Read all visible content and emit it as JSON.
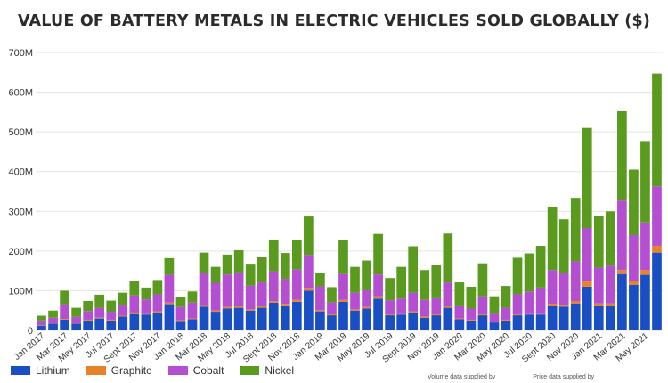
{
  "chart_data": {
    "type": "bar",
    "stacked": true,
    "title": "VALUE OF BATTERY METALS IN ELECTRIC VEHICLES SOLD GLOBALLY ($)",
    "xlabel": "",
    "ylabel": "",
    "ylim": [
      0,
      700
    ],
    "y_ticks": [
      0,
      100,
      200,
      300,
      400,
      500,
      600,
      700
    ],
    "y_tick_labels": [
      "0",
      "100M",
      "200M",
      "300M",
      "400M",
      "500M",
      "600M",
      "700M"
    ],
    "grid": true,
    "legend_position": "bottom-left",
    "categories": [
      "Jan 2017",
      "Feb 2017",
      "Mar 2017",
      "Apr 2017",
      "May 2017",
      "Jun 2017",
      "Jul 2017",
      "Aug 2017",
      "Sept 2017",
      "Oct 2017",
      "Nov 2017",
      "Dec 2017",
      "Jan 2018",
      "Feb 2018",
      "Mar 2018",
      "Apr 2018",
      "May 2018",
      "Jun 2018",
      "Jul 2018",
      "Aug 2018",
      "Sept 2018",
      "Oct 2018",
      "Nov 2018",
      "Dec 2018",
      "Jan 2019",
      "Feb 2019",
      "Mar 2019",
      "Apr 2019",
      "May 2019",
      "Jun 2019",
      "Jul 2019",
      "Aug 2019",
      "Sept 2019",
      "Oct 2019",
      "Nov 2019",
      "Dec 2019",
      "Jan 2020",
      "Feb 2020",
      "Mar 2020",
      "Apr 2020",
      "May 2020",
      "Jun 2020",
      "Jul 2020",
      "Aug 2020",
      "Sept 2020",
      "Oct 2020",
      "Nov 2020",
      "Dec 2020",
      "Jan 2021",
      "Feb 2021",
      "Mar 2021",
      "Apr 2021",
      "May 2021",
      "Jun 2021"
    ],
    "x_tick_labels": [
      "Jan 2017",
      "Mar 2017",
      "May 2017",
      "Jul 2017",
      "Sept 2017",
      "Nov 2017",
      "Jan 2018",
      "Mar 2018",
      "May 2018",
      "Jul 2018",
      "Sept 2018",
      "Nov 2018",
      "Jan 2019",
      "Mar 2019",
      "May 2019",
      "Jul 2019",
      "Sept 2019",
      "Nov 2019",
      "Jan 2020",
      "Mar 2020",
      "May 2020",
      "Jul 2020",
      "Sept 2020",
      "Nov 2020",
      "Jan 2021",
      "Mar 2021",
      "May 2021"
    ],
    "series": [
      {
        "name": "Lithium",
        "color": "#1a4fc4",
        "values": [
          12,
          17,
          27,
          17,
          25,
          30,
          25,
          35,
          42,
          40,
          45,
          66,
          24,
          28,
          60,
          47,
          55,
          57,
          50,
          57,
          70,
          63,
          72,
          100,
          48,
          38,
          72,
          50,
          55,
          80,
          38,
          40,
          45,
          32,
          38,
          57,
          28,
          25,
          38,
          20,
          25,
          38,
          40,
          40,
          62,
          60,
          68,
          110,
          62,
          62,
          142,
          115,
          140,
          196
        ]
      },
      {
        "name": "Graphite",
        "color": "#e8822a",
        "values": [
          1,
          1,
          2,
          1,
          2,
          2,
          2,
          2,
          3,
          3,
          3,
          4,
          2,
          2,
          4,
          3,
          4,
          4,
          3,
          4,
          4,
          4,
          5,
          7,
          3,
          3,
          5,
          3,
          4,
          6,
          3,
          3,
          3,
          3,
          3,
          4,
          2,
          2,
          3,
          2,
          2,
          3,
          3,
          3,
          5,
          5,
          6,
          13,
          6,
          6,
          10,
          10,
          12,
          17
        ]
      },
      {
        "name": "Cobalt",
        "color": "#b44fd1",
        "values": [
          12,
          14,
          37,
          16,
          22,
          25,
          20,
          28,
          43,
          35,
          43,
          70,
          33,
          40,
          80,
          70,
          82,
          85,
          60,
          60,
          75,
          63,
          77,
          83,
          60,
          30,
          65,
          42,
          42,
          55,
          35,
          37,
          47,
          42,
          40,
          60,
          33,
          28,
          45,
          22,
          30,
          50,
          55,
          65,
          85,
          80,
          100,
          135,
          90,
          95,
          175,
          115,
          120,
          150
        ]
      },
      {
        "name": "Nickel",
        "color": "#5a9a1e",
        "values": [
          12,
          18,
          34,
          23,
          25,
          33,
          28,
          30,
          36,
          30,
          36,
          42,
          24,
          28,
          52,
          40,
          50,
          56,
          55,
          65,
          80,
          65,
          73,
          97,
          33,
          38,
          85,
          65,
          75,
          102,
          56,
          80,
          117,
          75,
          84,
          123,
          58,
          55,
          83,
          42,
          55,
          92,
          96,
          105,
          160,
          135,
          160,
          252,
          130,
          137,
          225,
          165,
          205,
          284
        ]
      }
    ]
  },
  "legend": [
    {
      "label": "Lithium",
      "color": "#1a4fc4"
    },
    {
      "label": "Graphite",
      "color": "#e8822a"
    },
    {
      "label": "Cobalt",
      "color": "#b44fd1"
    },
    {
      "label": "Nickel",
      "color": "#5a9a1e"
    }
  ],
  "credits": {
    "volume": "Volume data supplied by",
    "price": "Price data supplied by"
  }
}
